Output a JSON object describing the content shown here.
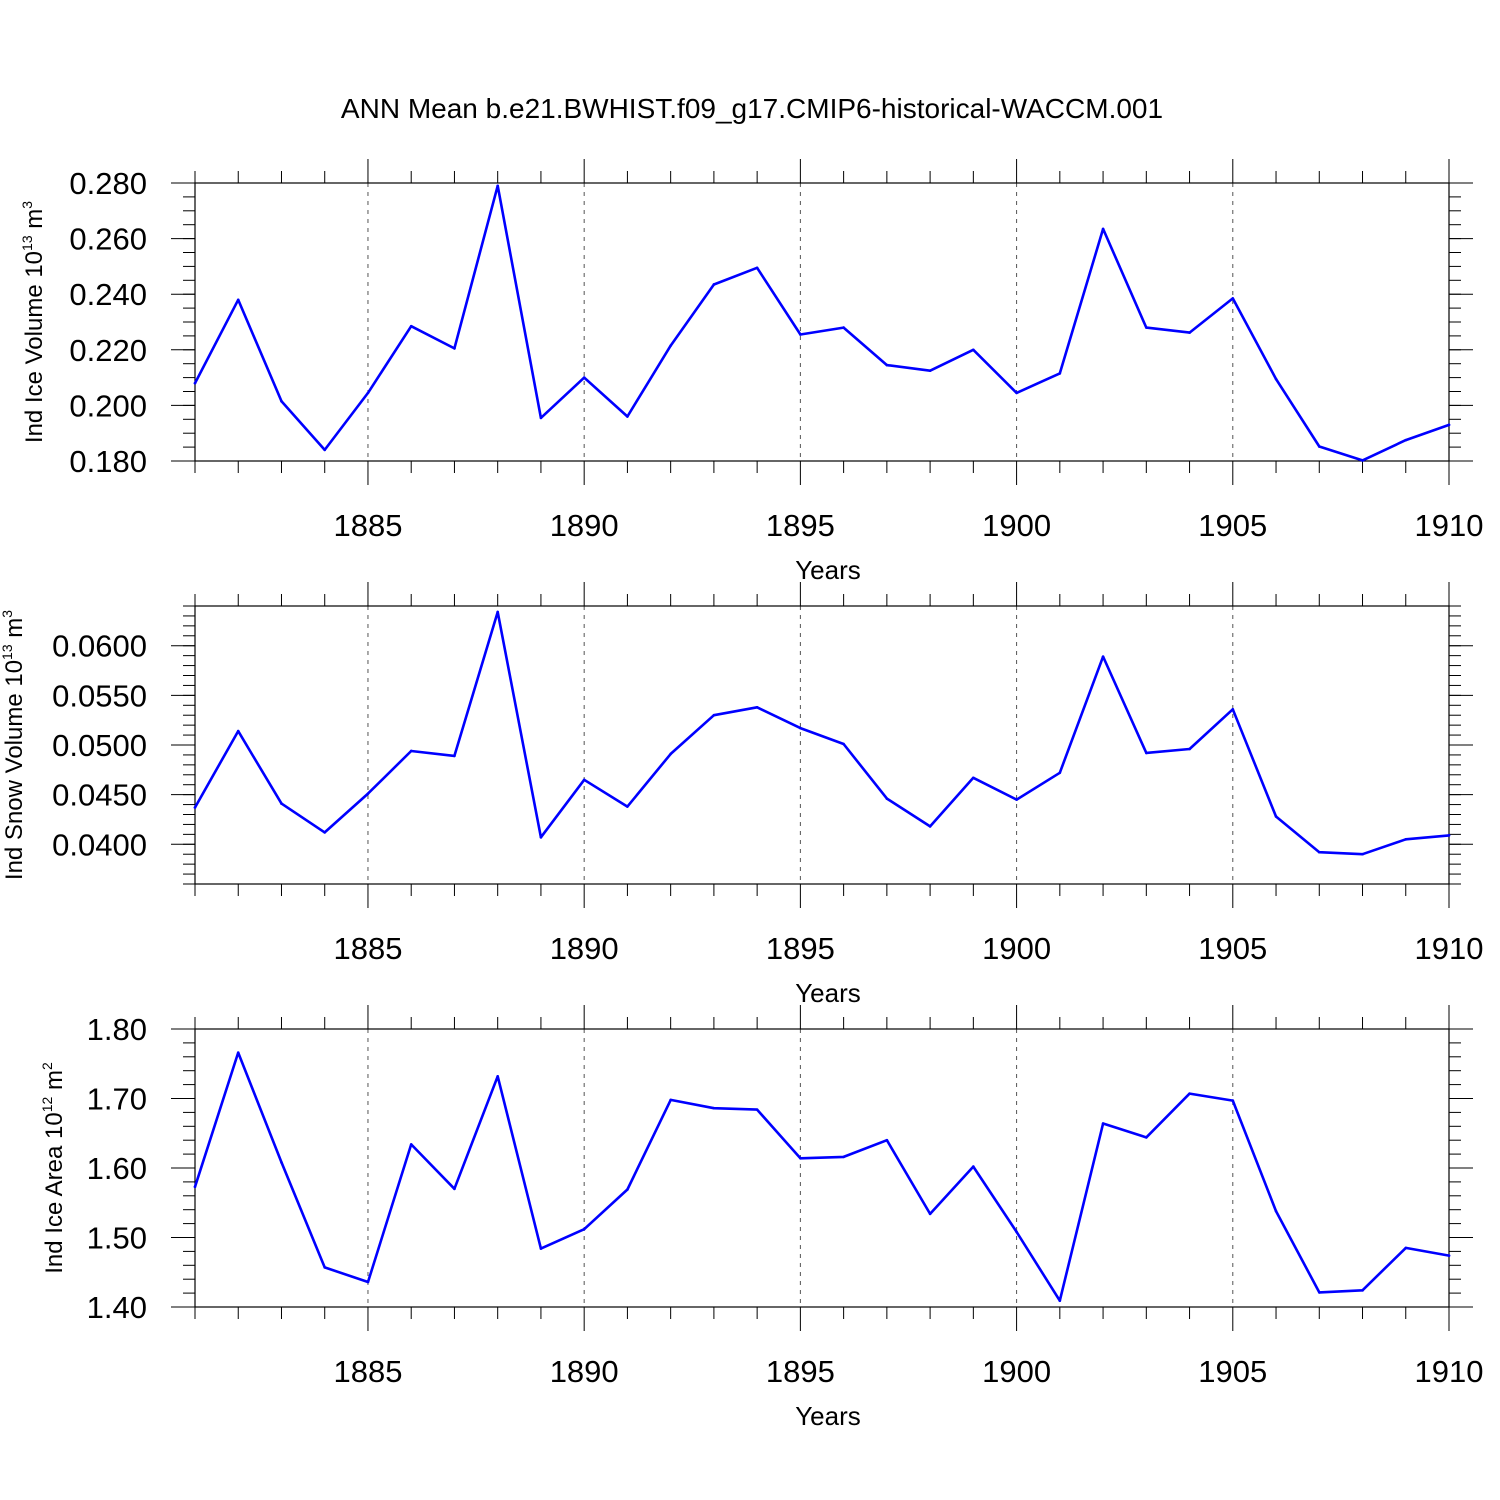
{
  "title": "ANN Mean b.e21.BWHIST.f09_g17.CMIP6-historical-WACCM.001",
  "line_color": "#0000ff",
  "chart_data": [
    {
      "type": "line",
      "name": "ice-volume",
      "ylabel_main": "Ind Ice Volume 10",
      "ylabel_exp": "13",
      "ylabel_unit": " m",
      "ylabel_unit_exp": "3",
      "xlabel": "Years",
      "xlim": [
        1881,
        1910
      ],
      "ylim": [
        0.18,
        0.28
      ],
      "yticks": [
        0.18,
        0.2,
        0.22,
        0.24,
        0.26,
        0.28
      ],
      "ytick_labels": [
        "0.180",
        "0.200",
        "0.220",
        "0.240",
        "0.260",
        "0.280"
      ],
      "ytick_minor": 0.005,
      "xticks": [
        1885,
        1890,
        1895,
        1900,
        1905,
        1910
      ],
      "xtick_labels": [
        "1885",
        "1890",
        "1895",
        "1900",
        "1905",
        "1910"
      ],
      "x": [
        1881,
        1882,
        1883,
        1884,
        1885,
        1886,
        1887,
        1888,
        1889,
        1890,
        1891,
        1892,
        1893,
        1894,
        1895,
        1896,
        1897,
        1898,
        1899,
        1900,
        1901,
        1902,
        1903,
        1904,
        1905,
        1906,
        1907,
        1908,
        1909,
        1910
      ],
      "values": [
        0.208,
        0.238,
        0.2015,
        0.184,
        0.2045,
        0.2285,
        0.2205,
        0.279,
        0.1955,
        0.21,
        0.196,
        0.2215,
        0.2435,
        0.2495,
        0.2255,
        0.228,
        0.2145,
        0.2125,
        0.22,
        0.2045,
        0.2115,
        0.2635,
        0.228,
        0.2262,
        0.2385,
        0.2095,
        0.1852,
        0.1802,
        0.1875,
        0.193
      ]
    },
    {
      "type": "line",
      "name": "snow-volume",
      "ylabel_main": "Ind Snow Volume 10",
      "ylabel_exp": "13",
      "ylabel_unit": " m",
      "ylabel_unit_exp": "3",
      "xlabel": "Years",
      "xlim": [
        1881,
        1910
      ],
      "ylim": [
        0.036,
        0.064
      ],
      "yticks": [
        0.04,
        0.045,
        0.05,
        0.055,
        0.06
      ],
      "ytick_labels": [
        "0.0400",
        "0.0450",
        "0.0500",
        "0.0550",
        "0.0600"
      ],
      "ytick_minor": 0.001,
      "xticks": [
        1885,
        1890,
        1895,
        1900,
        1905,
        1910
      ],
      "xtick_labels": [
        "1885",
        "1890",
        "1895",
        "1900",
        "1905",
        "1910"
      ],
      "x": [
        1881,
        1882,
        1883,
        1884,
        1885,
        1886,
        1887,
        1888,
        1889,
        1890,
        1891,
        1892,
        1893,
        1894,
        1895,
        1896,
        1897,
        1898,
        1899,
        1900,
        1901,
        1902,
        1903,
        1904,
        1905,
        1906,
        1907,
        1908,
        1909,
        1910
      ],
      "values": [
        0.0437,
        0.0514,
        0.0441,
        0.0412,
        0.0451,
        0.0494,
        0.0489,
        0.0634,
        0.0407,
        0.0465,
        0.0438,
        0.0491,
        0.053,
        0.0538,
        0.0517,
        0.0501,
        0.0446,
        0.0418,
        0.0467,
        0.0445,
        0.0472,
        0.0589,
        0.0492,
        0.0496,
        0.0536,
        0.0428,
        0.0392,
        0.039,
        0.0405,
        0.0409
      ]
    },
    {
      "type": "line",
      "name": "ice-area",
      "ylabel_main": "Ind Ice Area 10",
      "ylabel_exp": "12",
      "ylabel_unit": " m",
      "ylabel_unit_exp": "2",
      "xlabel": "Years",
      "xlim": [
        1881,
        1910
      ],
      "ylim": [
        1.4,
        1.8
      ],
      "yticks": [
        1.4,
        1.5,
        1.6,
        1.7,
        1.8
      ],
      "ytick_labels": [
        "1.40",
        "1.50",
        "1.60",
        "1.70",
        "1.80"
      ],
      "ytick_minor": 0.02,
      "xticks": [
        1885,
        1890,
        1895,
        1900,
        1905,
        1910
      ],
      "xtick_labels": [
        "1885",
        "1890",
        "1895",
        "1900",
        "1905",
        "1910"
      ],
      "x": [
        1881,
        1882,
        1883,
        1884,
        1885,
        1886,
        1887,
        1888,
        1889,
        1890,
        1891,
        1892,
        1893,
        1894,
        1895,
        1896,
        1897,
        1898,
        1899,
        1900,
        1901,
        1902,
        1903,
        1904,
        1905,
        1906,
        1907,
        1908,
        1909,
        1910
      ],
      "values": [
        1.573,
        1.766,
        1.608,
        1.457,
        1.436,
        1.634,
        1.57,
        1.732,
        1.484,
        1.512,
        1.569,
        1.698,
        1.686,
        1.684,
        1.614,
        1.616,
        1.64,
        1.534,
        1.602,
        1.508,
        1.409,
        1.664,
        1.644,
        1.707,
        1.697,
        1.538,
        1.421,
        1.424,
        1.485,
        1.474
      ]
    }
  ]
}
